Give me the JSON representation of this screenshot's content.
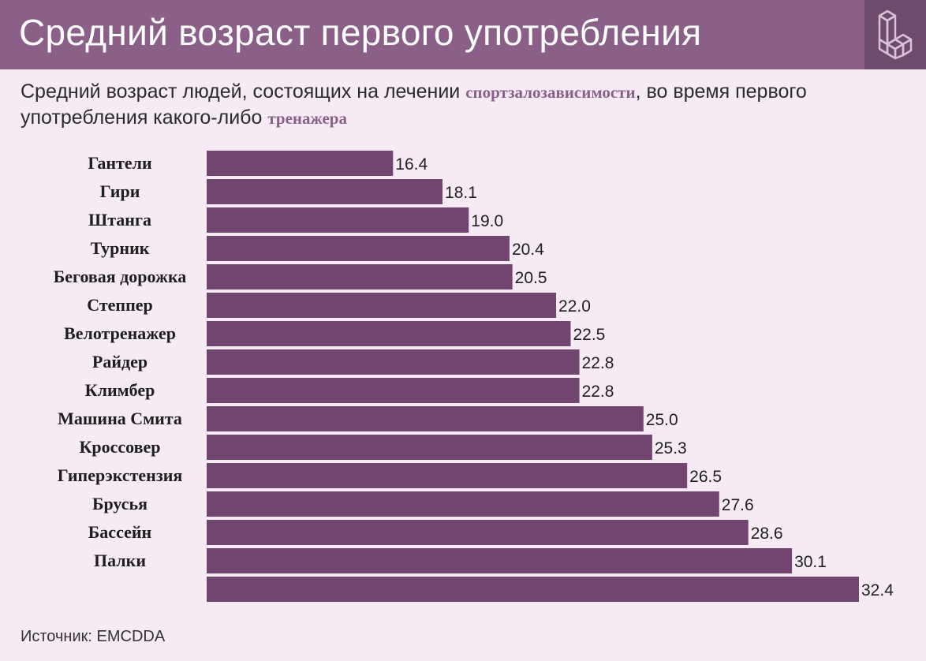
{
  "header": {
    "title": "Средний возраст первого употребления",
    "logo_icon": "cube-stack-logo-icon"
  },
  "subtitle": {
    "part1": "Средний возраст людей, состоящих на лечении ",
    "highlight1": "спортзалозависимости",
    "part2": ", во время первого употребления какого-либо ",
    "highlight2": "тренажера"
  },
  "source": "Источник: EMCDDA",
  "colors": {
    "header_bg": "#8a5f88",
    "logo_bg": "#6e4a6c",
    "bar": "#724470",
    "page_bg": "#f6ebf4",
    "highlight_text": "#8a5f88"
  },
  "chart_data": {
    "type": "bar",
    "orientation": "horizontal",
    "categories": [
      "Гантели",
      "Гири",
      "Штанга",
      "Турник",
      "Беговая дорожка",
      "Степпер",
      "Велотренажер",
      "Райдер",
      "Климбер",
      "Машина Смита",
      "Кроссовер",
      "Гиперэкстензия",
      "Брусья",
      "Бассейн",
      "Палки",
      ""
    ],
    "values": [
      16.4,
      18.1,
      19.0,
      20.4,
      20.5,
      22.0,
      22.5,
      22.8,
      22.8,
      25.0,
      25.3,
      26.5,
      27.6,
      28.6,
      30.1,
      32.4
    ],
    "value_labels": [
      "16.4",
      "18.1",
      "19.0",
      "20.4",
      "20.5",
      "22.0",
      "22.5",
      "22.8",
      "22.8",
      "25.0",
      "25.3",
      "26.5",
      "27.6",
      "28.6",
      "30.1",
      "32.4"
    ],
    "xlim": [
      10,
      32.4
    ],
    "grid": false,
    "legend": "none"
  }
}
